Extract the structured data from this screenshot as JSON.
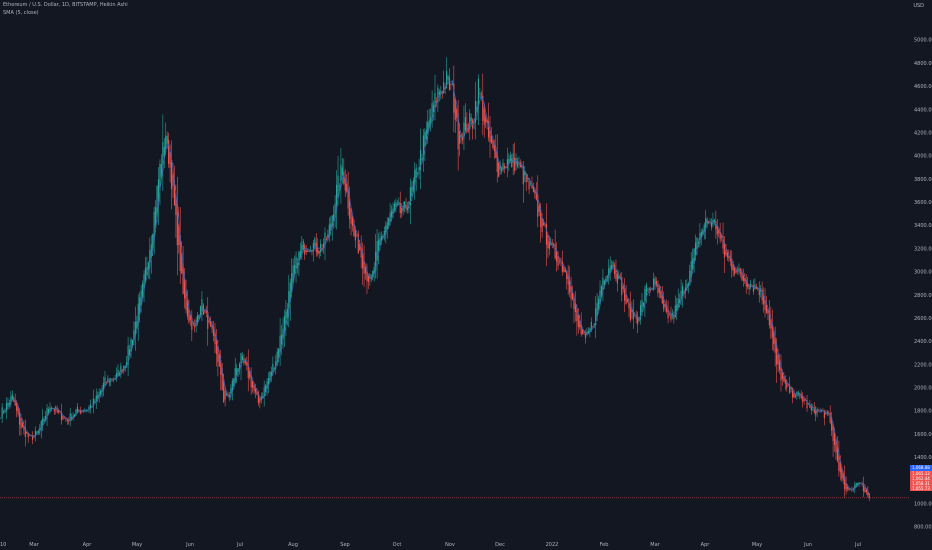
{
  "header": {
    "symbol_line": "Ethereum / U.S. Dollar, 1D, BITSTAMP, Heikin Ashi",
    "indicator_line": "SMA (5, close)",
    "currency": "USD"
  },
  "colors": {
    "background": "#131722",
    "up": "#26a69a",
    "down": "#ef5350",
    "sma": "#3d5fa8",
    "price_line": "#ef5350",
    "ma_tag": "#2962ff"
  },
  "price_tags": {
    "ma_value": "1,068.88",
    "last_values": [
      "1,065.12",
      "1,062.44",
      "1,058.31",
      "1,055.73"
    ]
  },
  "chart_data": {
    "type": "candlestick",
    "title": "Ethereum / U.S. Dollar, 1D, BITSTAMP, Heikin Ashi",
    "ylabel": "USD",
    "ylim": [
      600,
      5200
    ],
    "y_ticks": [
      "800.00",
      "1000.00",
      "1200.00",
      "1400.00",
      "1600.00",
      "1800.00",
      "2000.00",
      "2200.00",
      "2400.00",
      "2600.00",
      "2800.00",
      "3000.00",
      "3200.00",
      "3400.00",
      "3600.00",
      "3800.00",
      "4000.00",
      "4200.00",
      "4400.00",
      "4600.00",
      "4800.00",
      "5000.00"
    ],
    "x_ticks": [
      "Mar",
      "Apr",
      "May",
      "Jun",
      "Jul",
      "Aug",
      "Sep",
      "Oct",
      "Nov",
      "Dec",
      "2022",
      "Feb",
      "Mar",
      "Apr",
      "May",
      "Jun",
      "Jul"
    ],
    "x_tick_prefix": "10",
    "anchors_close": [
      [
        0,
        1780
      ],
      [
        8,
        1920
      ],
      [
        14,
        1660
      ],
      [
        20,
        1560
      ],
      [
        26,
        1620
      ],
      [
        34,
        1860
      ],
      [
        40,
        1770
      ],
      [
        46,
        1720
      ],
      [
        52,
        1800
      ],
      [
        60,
        1820
      ],
      [
        66,
        1900
      ],
      [
        72,
        2050
      ],
      [
        80,
        2100
      ],
      [
        86,
        2220
      ],
      [
        92,
        2500
      ],
      [
        98,
        2850
      ],
      [
        104,
        3300
      ],
      [
        110,
        3900
      ],
      [
        114,
        4200
      ],
      [
        118,
        3800
      ],
      [
        122,
        3300
      ],
      [
        126,
        2800
      ],
      [
        130,
        2600
      ],
      [
        134,
        2500
      ],
      [
        138,
        2750
      ],
      [
        142,
        2600
      ],
      [
        146,
        2450
      ],
      [
        150,
        2250
      ],
      [
        154,
        1900
      ],
      [
        158,
        1930
      ],
      [
        162,
        2150
      ],
      [
        166,
        2250
      ],
      [
        170,
        2150
      ],
      [
        174,
        2000
      ],
      [
        178,
        1870
      ],
      [
        184,
        2050
      ],
      [
        190,
        2250
      ],
      [
        196,
        2600
      ],
      [
        202,
        3000
      ],
      [
        208,
        3200
      ],
      [
        214,
        3250
      ],
      [
        220,
        3200
      ],
      [
        226,
        3300
      ],
      [
        232,
        3700
      ],
      [
        236,
        3900
      ],
      [
        240,
        3600
      ],
      [
        244,
        3300
      ],
      [
        248,
        3200
      ],
      [
        252,
        3000
      ],
      [
        256,
        2900
      ],
      [
        260,
        3200
      ],
      [
        266,
        3400
      ],
      [
        272,
        3550
      ],
      [
        278,
        3500
      ],
      [
        284,
        3700
      ],
      [
        290,
        4000
      ],
      [
        296,
        4300
      ],
      [
        302,
        4550
      ],
      [
        308,
        4650
      ],
      [
        312,
        4550
      ],
      [
        316,
        4150
      ],
      [
        320,
        4250
      ],
      [
        326,
        4300
      ],
      [
        330,
        4600
      ],
      [
        334,
        4300
      ],
      [
        338,
        4100
      ],
      [
        344,
        3900
      ],
      [
        350,
        3950
      ],
      [
        356,
        3950
      ],
      [
        362,
        3800
      ],
      [
        368,
        3650
      ],
      [
        374,
        3400
      ],
      [
        380,
        3200
      ],
      [
        386,
        3100
      ],
      [
        392,
        2950
      ],
      [
        398,
        2550
      ],
      [
        404,
        2400
      ],
      [
        410,
        2600
      ],
      [
        416,
        2950
      ],
      [
        422,
        3100
      ],
      [
        428,
        2900
      ],
      [
        434,
        2650
      ],
      [
        440,
        2600
      ],
      [
        446,
        2850
      ],
      [
        452,
        2900
      ],
      [
        458,
        2650
      ],
      [
        464,
        2600
      ],
      [
        470,
        2800
      ],
      [
        476,
        3000
      ],
      [
        482,
        3300
      ],
      [
        488,
        3450
      ],
      [
        494,
        3400
      ],
      [
        500,
        3150
      ],
      [
        506,
        3050
      ],
      [
        512,
        2950
      ],
      [
        518,
        2900
      ],
      [
        524,
        2850
      ],
      [
        530,
        2650
      ],
      [
        536,
        2200
      ],
      [
        542,
        2000
      ],
      [
        548,
        1950
      ],
      [
        554,
        1900
      ],
      [
        560,
        1800
      ],
      [
        566,
        1800
      ],
      [
        572,
        1750
      ],
      [
        576,
        1500
      ],
      [
        580,
        1250
      ],
      [
        584,
        1100
      ],
      [
        588,
        1130
      ],
      [
        592,
        1200
      ],
      [
        596,
        1130
      ],
      [
        600,
        1060
      ]
    ],
    "sma_period": 5,
    "total_bars": 601
  }
}
